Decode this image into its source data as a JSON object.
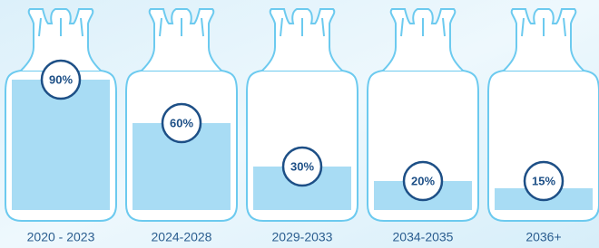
{
  "chart_data": {
    "type": "bar",
    "categories": [
      "2020 - 2023",
      "2024-2028",
      "2029-2033",
      "2034-2035",
      "2036+"
    ],
    "values": [
      90,
      60,
      30,
      20,
      15
    ],
    "value_labels": [
      "90%",
      "60%",
      "30%",
      "20%",
      "15%"
    ],
    "color": "#a8dcf4"
  }
}
